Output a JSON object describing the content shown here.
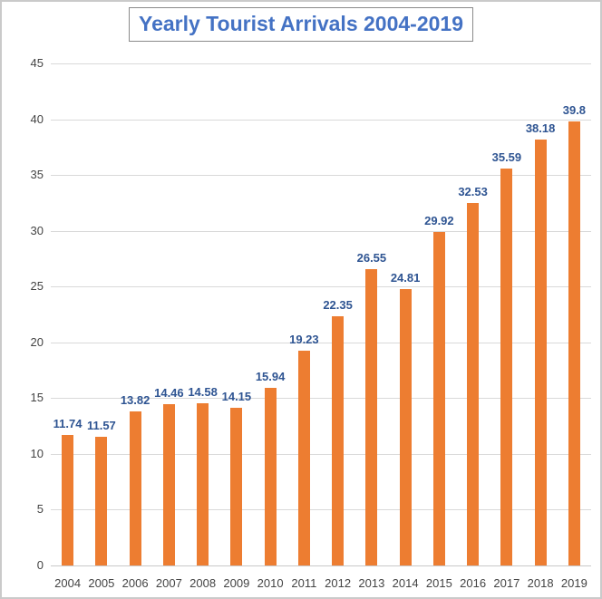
{
  "colors": {
    "bar": "#ED7D31",
    "title_text": "#4472C4",
    "title_border": "#8a8a8a",
    "data_label": "#2E5492",
    "axis_label": "#444444",
    "gridline": "#D9D9D9",
    "axis_line": "#C9C9C9",
    "frame_border": "#cacaca",
    "background": "#ffffff"
  },
  "chart_data": {
    "type": "bar",
    "title": "Yearly Tourist Arrivals 2004-2019",
    "categories": [
      "2004",
      "2005",
      "2006",
      "2007",
      "2008",
      "2009",
      "2010",
      "2011",
      "2012",
      "2013",
      "2014",
      "2015",
      "2016",
      "2017",
      "2018",
      "2019"
    ],
    "values": [
      11.74,
      11.57,
      13.82,
      14.46,
      14.58,
      14.15,
      15.94,
      19.23,
      22.35,
      26.55,
      24.81,
      29.92,
      32.53,
      35.59,
      38.18,
      39.8
    ],
    "data_labels": [
      "11.74",
      "11.57",
      "13.82",
      "14.46",
      "14.58",
      "14.15",
      "15.94",
      "19.23",
      "22.35",
      "26.55",
      "24.81",
      "29.92",
      "32.53",
      "35.59",
      "38.18",
      "39.8"
    ],
    "xlabel": "",
    "ylabel": "",
    "ylim": [
      0,
      45
    ],
    "yticks": [
      0,
      5,
      10,
      15,
      20,
      25,
      30,
      35,
      40,
      45
    ],
    "grid": true,
    "legend": false,
    "data_label_position": "outside-end"
  }
}
